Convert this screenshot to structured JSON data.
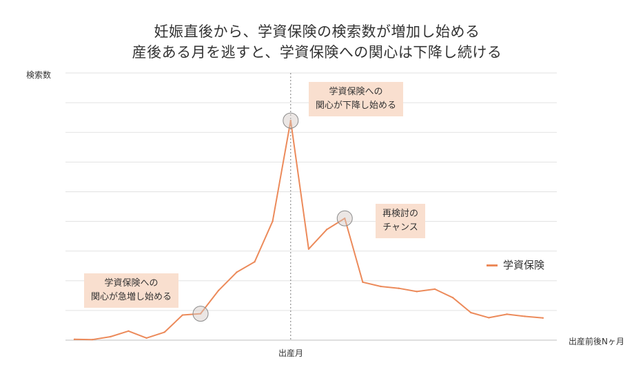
{
  "chart_data": {
    "type": "line",
    "title_line1": "妊娠直後から、学資保険の検索数が増加し始める",
    "title_line2": "産後ある月を逃すと、学資保険への関心は下降し続ける",
    "ylabel": "検索数",
    "xlabel": "出産前後Nヶ月",
    "x_tick_label": "出産月",
    "series": [
      {
        "name": "学資保険",
        "color": "#ec8a5a",
        "values": [
          0.3,
          0.2,
          1.3,
          3.4,
          0.8,
          3.0,
          9.4,
          9.9,
          18.6,
          25.4,
          29.3,
          44.5,
          82.2,
          34.1,
          41.4,
          45.6,
          21.7,
          20.1,
          19.4,
          18.2,
          19.1,
          15.9,
          10.3,
          8.4,
          9.7,
          8.9,
          8.3
        ]
      }
    ],
    "birth_month_index": 12,
    "ylim": [
      0,
      100
    ],
    "grid": true,
    "legend_position": "right",
    "annotations": [
      {
        "point_index": 7,
        "line1": "学資保険への",
        "line2": "関心が急増し始める"
      },
      {
        "point_index": 12,
        "line1": "学資保険への",
        "line2": "関心が下降し始める"
      },
      {
        "point_index": 15,
        "line1": "再検討の",
        "line2": "チャンス"
      }
    ]
  }
}
